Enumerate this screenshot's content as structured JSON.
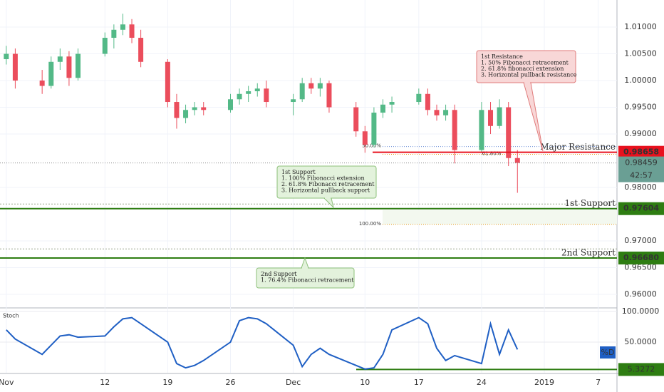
{
  "chart_data": {
    "type": "candlestick",
    "x": [
      0,
      1,
      4,
      5,
      6,
      7,
      8,
      11,
      12,
      13,
      14,
      15,
      18,
      19,
      20,
      21,
      22,
      25,
      26,
      27,
      28,
      29,
      32,
      33,
      34,
      35,
      36,
      39,
      40,
      41,
      42,
      43,
      46,
      47,
      48,
      49,
      50,
      53,
      54,
      55,
      56,
      57
    ],
    "open": [
      1.004,
      1.005,
      1.0,
      0.999,
      1.0035,
      1.0045,
      1.0005,
      1.005,
      1.008,
      1.0095,
      1.0105,
      1.008,
      1.0035,
      0.996,
      0.993,
      0.9945,
      0.995,
      0.9945,
      0.9965,
      0.9975,
      0.998,
      0.9985,
      0.996,
      0.9965,
      0.9995,
      0.9985,
      0.9995,
      0.995,
      0.9905,
      0.988,
      0.994,
      0.9955,
      0.996,
      0.9975,
      0.9945,
      0.9935,
      0.9945,
      0.987,
      0.9945,
      0.9915,
      0.995,
      0.9855
    ],
    "high": [
      1.0065,
      1.006,
      1.002,
      1.0045,
      1.006,
      1.0055,
      1.006,
      1.009,
      1.0105,
      1.0125,
      1.0115,
      1.0095,
      1.004,
      0.9975,
      0.9955,
      0.996,
      0.996,
      0.9975,
      0.9985,
      0.999,
      0.9995,
      1.0,
      0.9975,
      1.0005,
      1.0005,
      1.0005,
      1.0,
      0.996,
      0.9915,
      0.995,
      0.9965,
      0.997,
      0.9985,
      0.9985,
      0.9955,
      0.9955,
      0.9955,
      0.996,
      0.996,
      0.9965,
      0.996,
      0.987
    ],
    "low": [
      1.003,
      0.9985,
      0.9975,
      0.9985,
      1.002,
      0.999,
      1.0,
      1.0045,
      1.006,
      1.0085,
      1.007,
      1.0025,
      0.995,
      0.991,
      0.992,
      0.9935,
      0.9935,
      0.994,
      0.9955,
      0.996,
      0.997,
      0.995,
      0.9935,
      0.996,
      0.9975,
      0.997,
      0.994,
      0.9895,
      0.9865,
      0.9875,
      0.993,
      0.994,
      0.9955,
      0.9935,
      0.9925,
      0.9925,
      0.9845,
      0.9865,
      0.99,
      0.991,
      0.984,
      0.979
    ],
    "close": [
      1.005,
      1.0,
      0.999,
      1.0035,
      1.0045,
      1.0005,
      1.005,
      1.008,
      1.0095,
      1.0105,
      1.008,
      1.0035,
      0.996,
      0.993,
      0.9945,
      0.995,
      0.9945,
      0.9965,
      0.9975,
      0.998,
      0.9985,
      0.996,
      0.9965,
      0.9995,
      0.9985,
      0.9995,
      0.995,
      0.9905,
      0.988,
      0.994,
      0.9955,
      0.996,
      0.9975,
      0.9945,
      0.9935,
      0.9945,
      0.987,
      0.9945,
      0.9915,
      0.995,
      0.9855,
      0.98459
    ],
    "up_color": "#53b987",
    "down_color": "#eb4d5c",
    "xlim": [
      -0.7,
      68.1
    ],
    "xticks": [
      {
        "value": 0,
        "label": "Nov"
      },
      {
        "value": 11,
        "label": "12"
      },
      {
        "value": 18,
        "label": "19"
      },
      {
        "value": 25,
        "label": "26"
      },
      {
        "value": 32,
        "label": "Dec"
      },
      {
        "value": 40,
        "label": "10"
      },
      {
        "value": 46,
        "label": "17"
      },
      {
        "value": 53,
        "label": "24"
      },
      {
        "value": 60,
        "label": "2019"
      },
      {
        "value": 66,
        "label": "7"
      }
    ],
    "ylim": [
      0.95747,
      1.01507
    ],
    "yticks": [
      {
        "value": 1.01,
        "label": "1.01000"
      },
      {
        "value": 1.005,
        "label": "1.00500"
      },
      {
        "value": 1.0,
        "label": "1.00000"
      },
      {
        "value": 0.995,
        "label": "0.99500"
      },
      {
        "value": 0.99,
        "label": "0.99000"
      },
      {
        "value": 0.98,
        "label": "0.98000"
      },
      {
        "value": 0.97,
        "label": "0.97000"
      },
      {
        "value": 0.965,
        "label": "0.96500"
      },
      {
        "value": 0.96,
        "label": "0.96000"
      }
    ],
    "grid": true,
    "last_price": {
      "value": 0.98459,
      "label": "0.98459",
      "countdown": "42:57"
    },
    "levels": [
      {
        "name": "Major Resistance",
        "value": 0.98658,
        "label": "0.98658",
        "color": "#e8111e"
      },
      {
        "name": "1st Support",
        "value": 0.97604,
        "label": "0.97604",
        "color": "#2e7d12"
      },
      {
        "name": "2nd Support",
        "value": 0.9668,
        "label": "0.96680",
        "color": "#2e7d12"
      }
    ],
    "fib_levels": [
      {
        "label": "50.00%",
        "value": 0.98766,
        "color": "#6b8fd6"
      },
      {
        "label": "61.80%",
        "value": 0.9862,
        "color": "#e59a1c"
      },
      {
        "label": "100.00%",
        "value": 0.9731,
        "color": "#e59a1c"
      }
    ],
    "dotted_levels": [
      0.9769,
      0.9685
    ],
    "annotations": [
      {
        "lines": [
          "1st Resistance",
          "1. 50% Fibonacci retracement",
          "2. 61.8% fibonacci extension",
          "3. Horizontal pullback resistance"
        ],
        "kind": "resistance"
      },
      {
        "lines": [
          "1st Support",
          "1. 100% Fibonacci extension",
          "2. 61.8% Fibonacci retracement",
          "3. Horizontal pullback support"
        ],
        "kind": "support"
      },
      {
        "lines": [
          "2nd Support",
          "1. 76.4% Fibonacci retracement"
        ],
        "kind": "support"
      }
    ],
    "oscillator": {
      "name": "Stoch",
      "legend": "%D",
      "color": "#1f5fc4",
      "values": [
        70,
        55,
        30,
        45,
        60,
        62,
        58,
        60,
        75,
        88,
        90,
        80,
        50,
        15,
        8,
        12,
        20,
        50,
        85,
        90,
        88,
        80,
        45,
        10,
        30,
        40,
        30,
        12,
        6,
        8,
        30,
        70,
        90,
        80,
        40,
        20,
        28,
        15,
        80,
        30,
        70,
        38
      ],
      "ylim": [
        0,
        104.7
      ],
      "yticks": [
        {
          "value": 100,
          "label": "100.0000"
        },
        {
          "value": 50,
          "label": "50.0000"
        }
      ],
      "level": {
        "value": 5.3272,
        "label": "5.3272",
        "color": "#2e7d12"
      }
    }
  }
}
